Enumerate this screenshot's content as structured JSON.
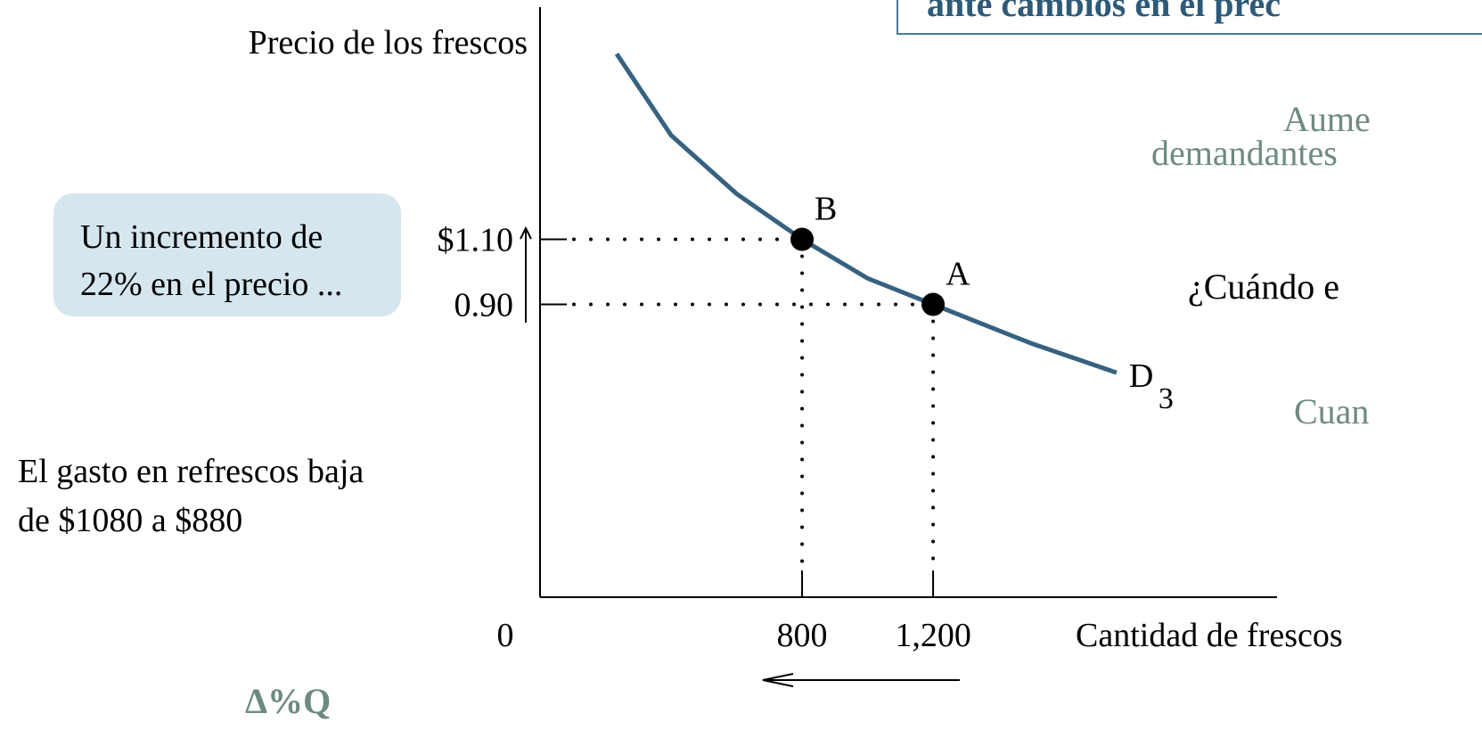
{
  "title": "ante cambios en el prec",
  "side_texts": [
    "Aume",
    "demandantes",
    "¿Cuándo e",
    "Cuan"
  ],
  "callout": [
    "Un incremento de",
    "22% en el precio ..."
  ],
  "note": [
    "El gasto en refrescos baja",
    "de $1080 a $880"
  ],
  "bottom_text": "Δ%Q",
  "chart_data": {
    "type": "line",
    "y_label": "Precio de los frescos",
    "x_label": "Cantidad de frescos",
    "xlim": [
      0,
      2250
    ],
    "ylim": [
      0,
      1.8
    ],
    "xticks": [
      0,
      800,
      {
        "value": 1200,
        "label": "1,200"
      }
    ],
    "yticks": [
      {
        "value": 0.9,
        "label": "0.90"
      },
      {
        "value": 1.1,
        "label": "$1.10"
      }
    ],
    "series": [
      {
        "name": "D",
        "subscript": "3",
        "color": "#36627f",
        "x": [
          234,
          400,
          600,
          800,
          1000,
          1200,
          1500,
          1760
        ],
        "values": [
          1.67,
          1.42,
          1.24,
          1.1,
          0.98,
          0.9,
          0.78,
          0.69
        ]
      }
    ],
    "points": [
      {
        "label": "B",
        "x": 800,
        "y": 1.1
      },
      {
        "label": "A",
        "x": 1200,
        "y": 0.9
      }
    ]
  }
}
